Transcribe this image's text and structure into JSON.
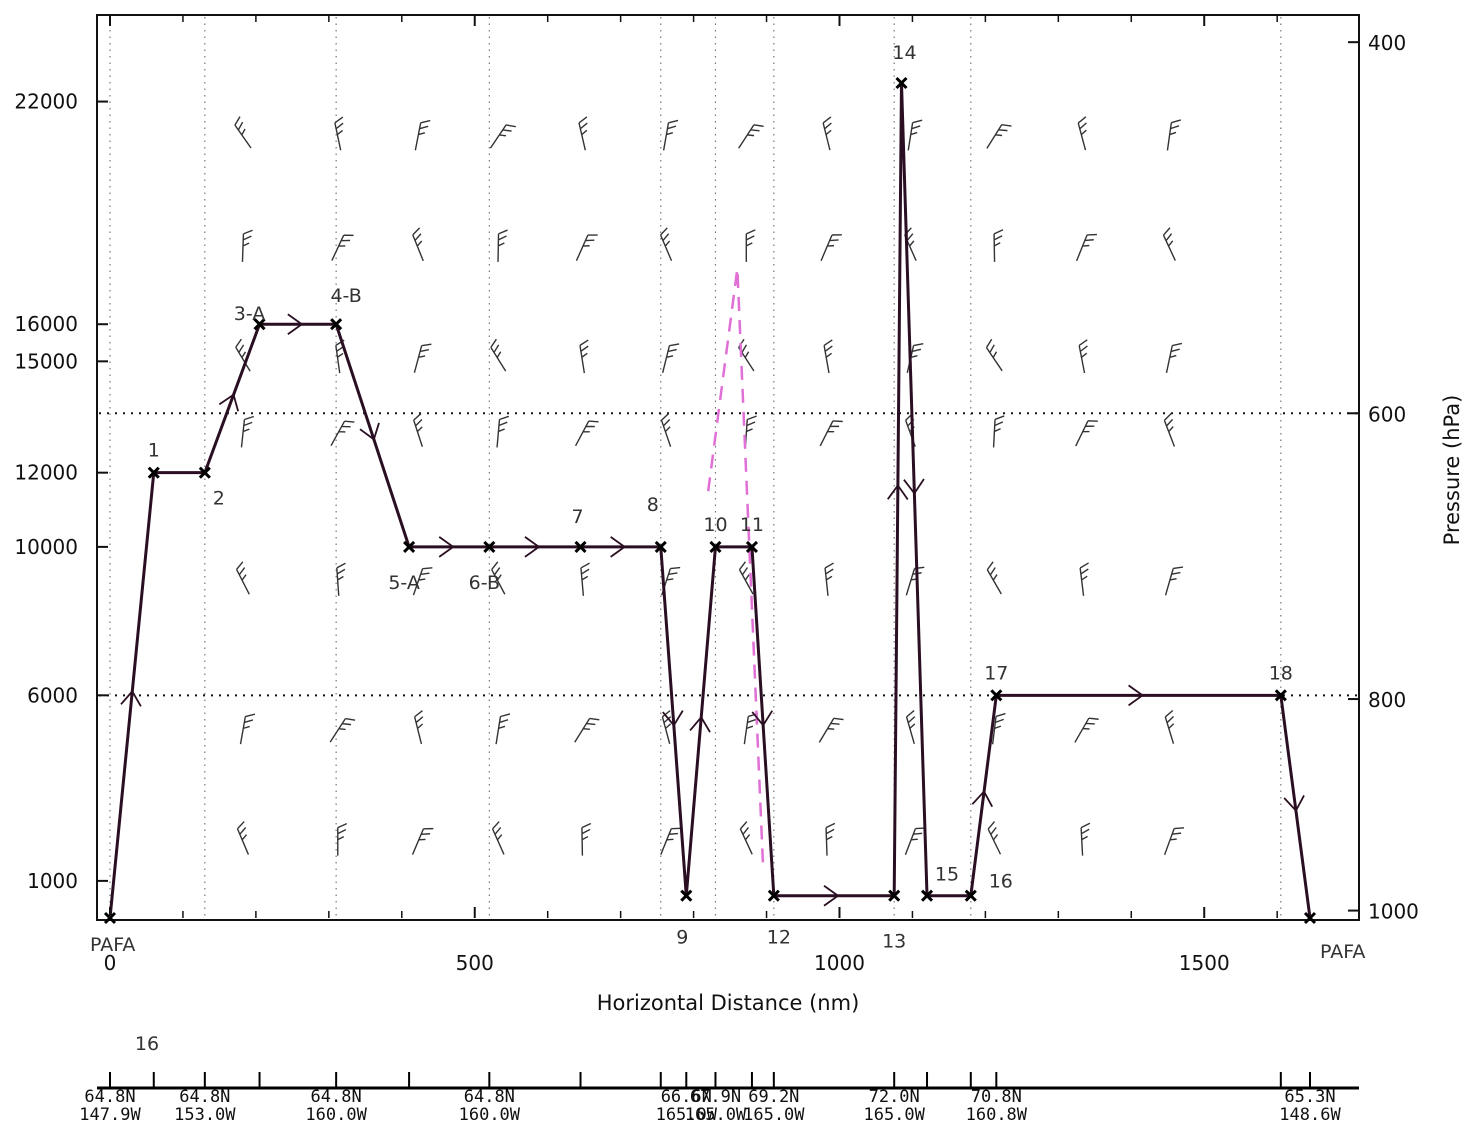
{
  "colors": {
    "route": "#2a0f22",
    "barb": "#333333",
    "dash": "#e06fd6",
    "grid": "#111111"
  },
  "chart_data": {
    "type": "line",
    "xlabel": "Horizontal Distance (nm)",
    "y2label": "Pressure (hPa)",
    "xlim": [
      0,
      1710
    ],
    "ylim": [
      0,
      24000
    ],
    "x_ticks": [
      {
        "value": 0,
        "label": "0"
      },
      {
        "value": 500,
        "label": "500"
      },
      {
        "value": 1000,
        "label": "1000"
      },
      {
        "value": 1500,
        "label": "1500"
      }
    ],
    "y_ticks": [
      {
        "value": 22000,
        "label": "22000"
      },
      {
        "value": 16000,
        "label": "16000"
      },
      {
        "value": 15000,
        "label": "15000"
      },
      {
        "value": 12000,
        "label": "12000"
      },
      {
        "value": 10000,
        "label": "10000"
      },
      {
        "value": 6000,
        "label": "6000"
      },
      {
        "value": 1000,
        "label": "1000"
      }
    ],
    "pressure_ticks": [
      {
        "alt": 23600,
        "label": "400"
      },
      {
        "alt": 13600,
        "label": "600"
      },
      {
        "alt": 5900,
        "label": "800"
      },
      {
        "alt": 200,
        "label": "1000"
      }
    ],
    "grid_dotted_altitudes": [
      13600,
      6000
    ],
    "route": {
      "x": [
        0,
        60,
        130,
        205,
        310,
        410,
        520,
        645,
        755,
        790,
        830,
        880,
        910,
        1075,
        1085,
        1120,
        1180,
        1215,
        1605,
        1645
      ],
      "y": [
        0,
        12000,
        12000,
        16000,
        16000,
        10000,
        10000,
        10000,
        10000,
        600,
        10000,
        10000,
        600,
        600,
        22500,
        600,
        600,
        6000,
        6000,
        0
      ]
    },
    "waypoint_labels": [
      {
        "text": "1",
        "x": 60,
        "y": 12000
      },
      {
        "text": "2",
        "x": 130,
        "y": 12000
      },
      {
        "text": "3-A",
        "x": 205,
        "y": 16000
      },
      {
        "text": "4-B",
        "x": 310,
        "y": 16000
      },
      {
        "text": "5-A",
        "x": 410,
        "y": 10000
      },
      {
        "text": "6-B",
        "x": 520,
        "y": 10000
      },
      {
        "text": "7",
        "x": 645,
        "y": 10000
      },
      {
        "text": "8",
        "x": 755,
        "y": 10000
      },
      {
        "text": "9",
        "x": 790,
        "y": 600
      },
      {
        "text": "10",
        "x": 830,
        "y": 10000
      },
      {
        "text": "11",
        "x": 880,
        "y": 10000
      },
      {
        "text": "12",
        "x": 910,
        "y": 600
      },
      {
        "text": "13",
        "x": 1075,
        "y": 600
      },
      {
        "text": "14",
        "x": 1085,
        "y": 22500
      },
      {
        "text": "15",
        "x": 1120,
        "y": 600
      },
      {
        "text": "16",
        "x": 1180,
        "y": 600
      },
      {
        "text": "17",
        "x": 1215,
        "y": 6000
      },
      {
        "text": "18",
        "x": 1605,
        "y": 6000
      },
      {
        "text": "PAFA",
        "x": 0,
        "y": 0
      },
      {
        "text": "PAFA",
        "x": 1645,
        "y": 0
      }
    ],
    "dashed_line": {
      "x": [
        820,
        860,
        895
      ],
      "y": [
        11500,
        17500,
        1500
      ]
    },
    "wind_barb_columns": [
      100,
      230,
      340,
      450,
      565,
      680,
      790,
      900,
      1015,
      1130,
      1250,
      1370,
      1485,
      1600
    ],
    "wind_barb_rows": [
      22000,
      19000,
      16000,
      14000,
      10000,
      6000,
      3000
    ],
    "bottom_strip": {
      "label_16": "16",
      "positions": [
        {
          "lat": "64.8N",
          "lon": "147.9W",
          "x": 0
        },
        {
          "lat": "64.8N",
          "lon": "153.0W",
          "x": 130
        },
        {
          "lat": "64.8N",
          "lon": "160.0W",
          "x": 310
        },
        {
          "lat": "64.8N",
          "lon": "160.0W",
          "x": 520
        },
        {
          "lat": "66.6N",
          "lon": "165.0W",
          "x": 790
        },
        {
          "lat": "67.9N",
          "lon": "165.0W",
          "x": 830
        },
        {
          "lat": "69.2N",
          "lon": "165.0W",
          "x": 910
        },
        {
          "lat": "72.0N",
          "lon": "165.0W",
          "x": 1075
        },
        {
          "lat": "70.8N",
          "lon": "160.8W",
          "x": 1215
        },
        {
          "lat": "65.3N",
          "lon": "148.6W",
          "x": 1645
        }
      ],
      "extra_tick_x": [
        60,
        205,
        410,
        645,
        755,
        880,
        1120,
        1180,
        1605
      ]
    }
  }
}
